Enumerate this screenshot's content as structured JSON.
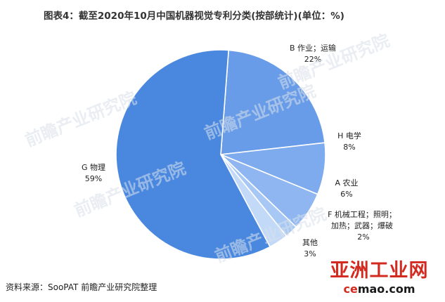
{
  "title": "图表4：截至2020年10月中国机器视觉专利分类(按部统计)(单位：%)",
  "source": "资料来源：SooPAT 前瞻产业研究院整理",
  "watermark": "前瞻产业研究院",
  "brand": {
    "name": "亚洲工业网",
    "url_prefix": "ce",
    "url_suffix": "mao.com"
  },
  "colors": {
    "G": "#4a88e0",
    "B": "#689ce8",
    "H": "#7eaaee",
    "A": "#8fb6f1",
    "F": "#a7c7f4",
    "other": "#c3d9f8"
  },
  "chart_data": {
    "type": "pie",
    "title": "图表4：截至2020年10月中国机器视觉专利分类(按部统计)(单位：%)",
    "slices": [
      {
        "key": "B",
        "label": "B 作业；运输",
        "value": 22,
        "pct_label": "22%"
      },
      {
        "key": "H",
        "label": "H 电学",
        "value": 8,
        "pct_label": "8%"
      },
      {
        "key": "A",
        "label": "A 农业",
        "value": 6,
        "pct_label": "6%"
      },
      {
        "key": "F",
        "label": "F 机械工程；照明；加热；武器；爆破",
        "label_lines": [
          "F 机械工程；照明；",
          "加热；武器；爆破"
        ],
        "value": 2,
        "pct_label": "2%"
      },
      {
        "key": "other",
        "label": "其他",
        "value": 3,
        "pct_label": "3%"
      },
      {
        "key": "G",
        "label": "G 物理",
        "value": 59,
        "pct_label": "59%"
      }
    ]
  }
}
